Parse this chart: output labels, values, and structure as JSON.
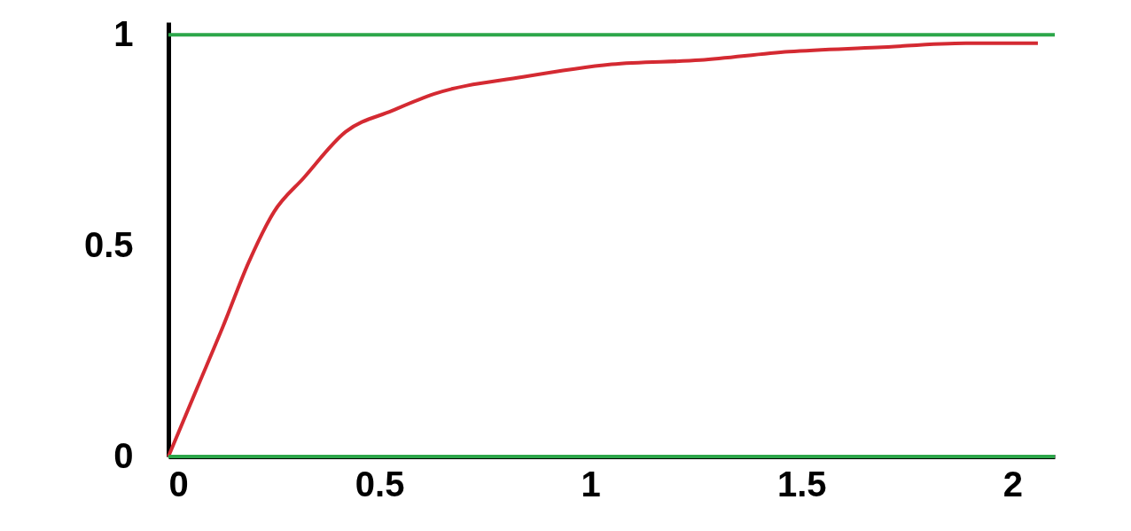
{
  "chart_data": {
    "type": "line",
    "x": [
      0,
      0.067,
      0.13,
      0.19,
      0.25,
      0.32,
      0.42,
      0.53,
      0.63,
      0.84,
      1.05,
      1.26,
      1.47,
      1.68,
      1.89,
      2.06
    ],
    "series": [
      {
        "color": "#d42a32",
        "values": [
          0,
          0.16,
          0.31,
          0.46,
          0.58,
          0.66,
          0.77,
          0.82,
          0.86,
          0.9,
          0.93,
          0.94,
          0.96,
          0.97,
          0.98,
          0.98
        ]
      }
    ],
    "xlim": [
      0,
      2.1
    ],
    "xticks": [
      0,
      0.5,
      1,
      1.5,
      2
    ],
    "ylim": [
      0,
      1.03
    ],
    "yticks": [
      0,
      0.5,
      1
    ],
    "grid": false,
    "legend": false,
    "marker": "none",
    "line_style": "solid",
    "ref_lines": [
      {
        "axis": "y",
        "value": 0,
        "color": "#2ca64a"
      },
      {
        "axis": "y",
        "value": 1,
        "color": "#2ca64a"
      }
    ]
  }
}
